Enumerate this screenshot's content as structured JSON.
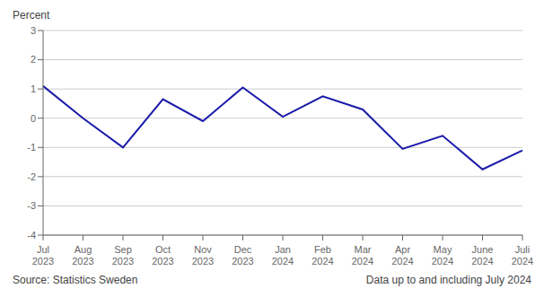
{
  "chart_data": {
    "type": "line",
    "ylabel": "Percent",
    "categories": [
      "Jul\n2023",
      "Aug\n2023",
      "Sep\n2023",
      "Oct\n2023",
      "Nov\n2023",
      "Dec\n2023",
      "Jan\n2024",
      "Feb\n2024",
      "Mar\n2024",
      "Apr\n2024",
      "May\n2024",
      "June\n2024",
      "Juli\n2024"
    ],
    "values": [
      1.1,
      0.0,
      -1.0,
      0.65,
      -0.1,
      1.05,
      0.05,
      0.75,
      0.3,
      -1.05,
      -0.6,
      -1.75,
      -1.1
    ],
    "color": "#1a1aaa",
    "ylim": [
      -4,
      3
    ],
    "yticks": [
      -4,
      -3,
      -2,
      -1,
      0,
      1,
      2,
      3
    ],
    "grid": true,
    "annotations": [
      "Source: Statistics Sweden",
      "Data up to and including July 2024"
    ]
  }
}
